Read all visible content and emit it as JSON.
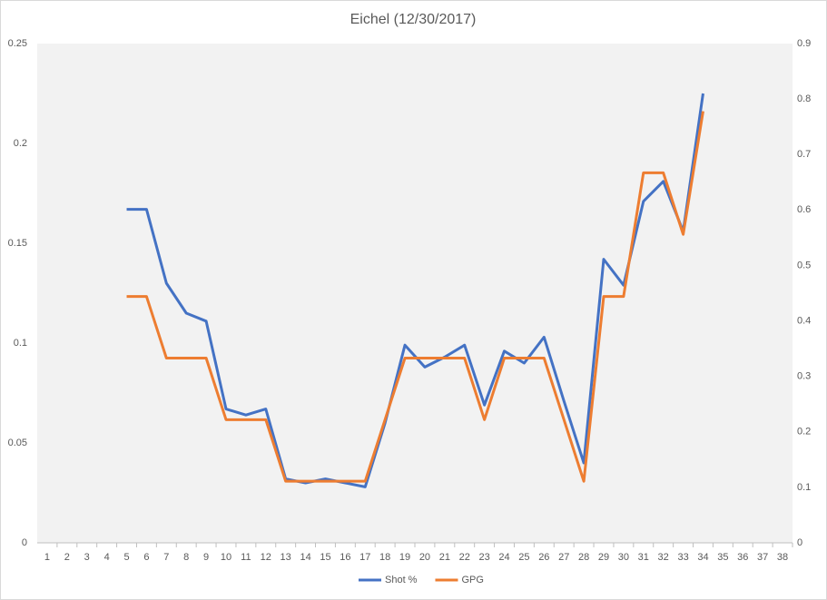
{
  "chart_data": {
    "type": "line",
    "title": "Eichel (12/30/2017)",
    "categories": [
      1,
      2,
      3,
      4,
      5,
      6,
      7,
      8,
      9,
      10,
      11,
      12,
      13,
      14,
      15,
      16,
      17,
      18,
      19,
      20,
      21,
      22,
      23,
      24,
      25,
      26,
      27,
      28,
      29,
      30,
      31,
      32,
      33,
      34,
      35,
      36,
      37,
      38
    ],
    "series": [
      {
        "name": "Shot %",
        "color": "#4472c4",
        "values": [
          null,
          null,
          null,
          null,
          0.167,
          0.167,
          0.13,
          0.115,
          0.111,
          0.067,
          0.064,
          0.067,
          0.032,
          0.03,
          0.032,
          0.03,
          0.028,
          0.06,
          0.099,
          0.088,
          0.093,
          0.099,
          0.069,
          0.096,
          0.09,
          0.103,
          0.071,
          0.04,
          0.142,
          0.129,
          0.171,
          0.181,
          0.156,
          0.225,
          null,
          null,
          null,
          null
        ]
      },
      {
        "name": "GPG",
        "color": "#ed7d31",
        "axis": "y2",
        "values": [
          null,
          null,
          null,
          null,
          0.444,
          0.444,
          0.333,
          0.333,
          0.333,
          0.222,
          0.222,
          0.222,
          0.111,
          0.111,
          0.111,
          0.111,
          0.111,
          0.222,
          0.333,
          0.333,
          0.333,
          0.333,
          0.222,
          0.333,
          0.333,
          0.333,
          0.222,
          0.111,
          0.444,
          0.444,
          0.667,
          0.667,
          0.556,
          0.778,
          null,
          null,
          null,
          null
        ]
      }
    ],
    "ylim": [
      0,
      0.25
    ],
    "yticks": [
      0,
      0.05,
      0.1,
      0.15,
      0.2,
      0.25
    ],
    "y2lim": [
      0,
      0.9
    ],
    "y2ticks": [
      0,
      0.1,
      0.2,
      0.3,
      0.4,
      0.5,
      0.6,
      0.7,
      0.8,
      0.9
    ],
    "legend": "bottom"
  }
}
